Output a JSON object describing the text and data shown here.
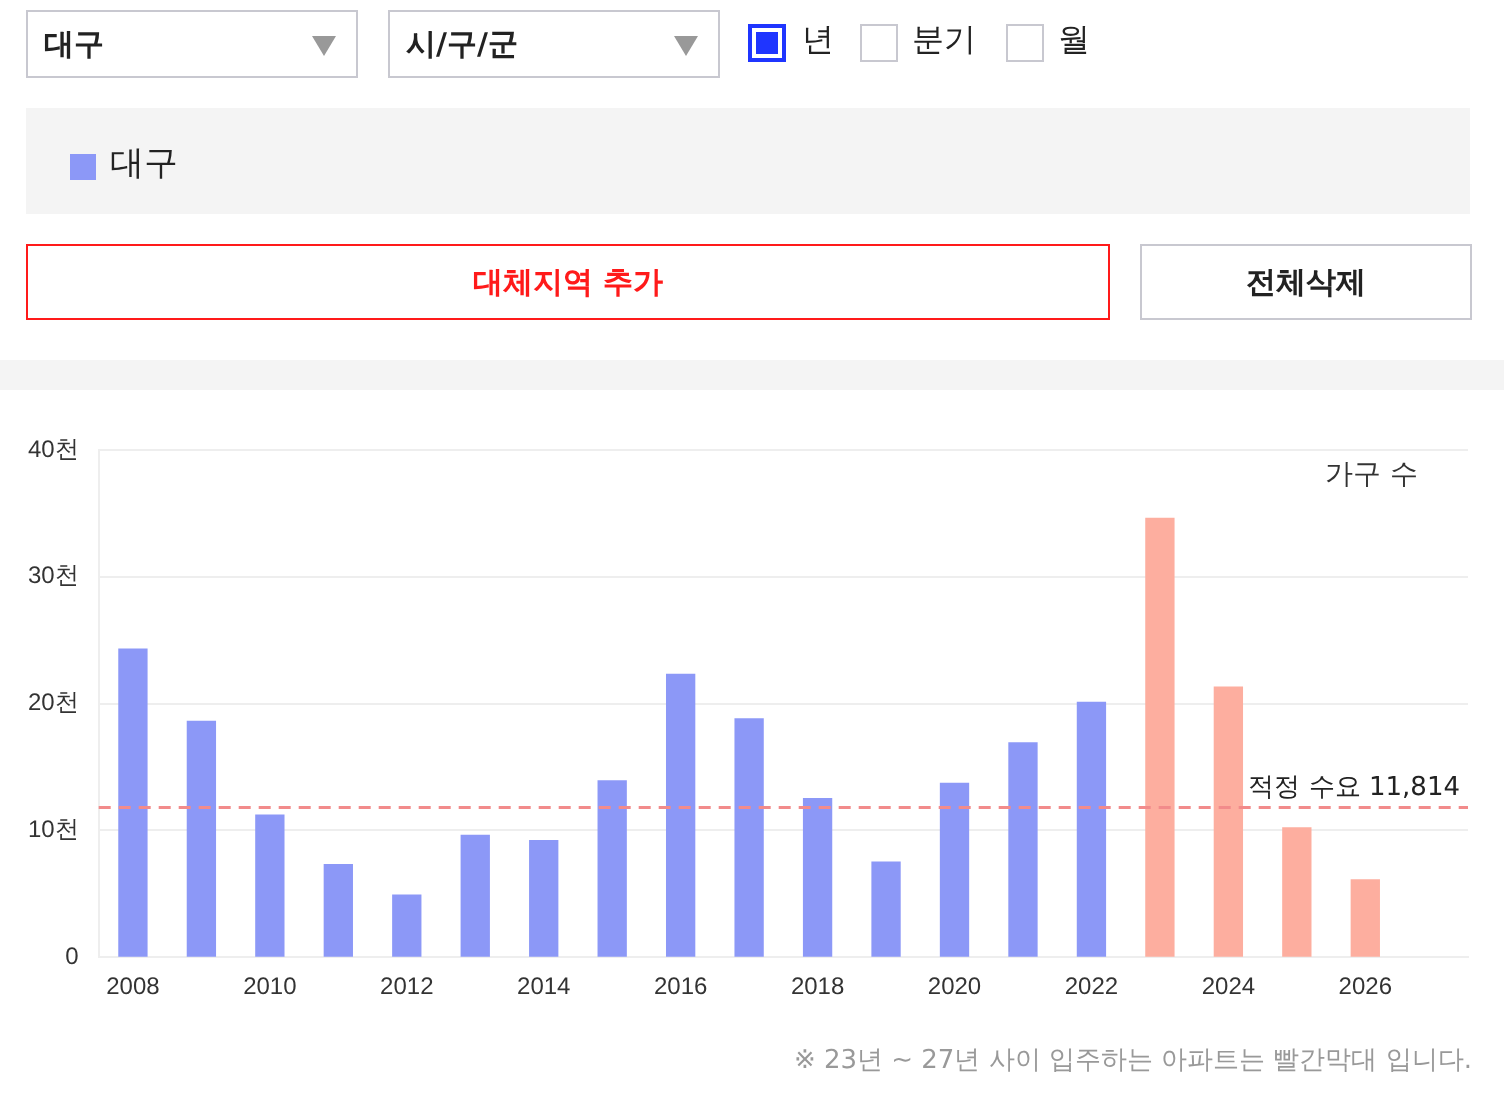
{
  "chart_data": {
    "type": "bar",
    "x": [
      2008,
      2009,
      2010,
      2011,
      2012,
      2013,
      2014,
      2015,
      2016,
      2017,
      2018,
      2019,
      2020,
      2021,
      2022,
      2023,
      2024,
      2025,
      2026
    ],
    "series": [
      {
        "name": "대구",
        "color": "#8c98f7",
        "values": [
          24.3,
          18.6,
          11.2,
          7.3,
          4.9,
          9.6,
          9.2,
          13.9,
          22.3,
          18.8,
          12.5,
          7.5,
          13.7,
          16.9,
          20.1,
          34.6,
          21.3,
          10.2,
          6.1
        ],
        "colors": [
          "#8c98f7",
          "#8c98f7",
          "#8c98f7",
          "#8c98f7",
          "#8c98f7",
          "#8c98f7",
          "#8c98f7",
          "#8c98f7",
          "#8c98f7",
          "#8c98f7",
          "#8c98f7",
          "#8c98f7",
          "#8c98f7",
          "#8c98f7",
          "#8c98f7",
          "#fdae9f",
          "#fdae9f",
          "#fdae9f",
          "#fdae9f"
        ]
      }
    ],
    "ylabel": "가구 수",
    "xlim": [
      2007.5,
      2027.5
    ],
    "xticks": [
      2008,
      2010,
      2012,
      2014,
      2016,
      2018,
      2020,
      2022,
      2024,
      2026
    ],
    "ylim": [
      0,
      40
    ],
    "yticks": [
      0,
      {
        "value": 10,
        "label": "10천"
      },
      {
        "value": 20,
        "label": "20천"
      },
      {
        "value": 30,
        "label": "30천"
      },
      {
        "value": 40,
        "label": "40천"
      }
    ],
    "ref_lines": [
      {
        "axis": "y",
        "value": 11.814,
        "label": "적정 수요 11,814",
        "color": "#f28b8b",
        "line_style": "dashed"
      }
    ],
    "grid": "y",
    "legend": "top",
    "annotations": [
      "대구",
      "시/구/군",
      "년",
      "분기",
      "월",
      "대체지역 추가",
      "전체삭제",
      "※ 23년 ~ 27년 사이 입주하는 아파트는 빨간막대 입니다."
    ]
  }
}
